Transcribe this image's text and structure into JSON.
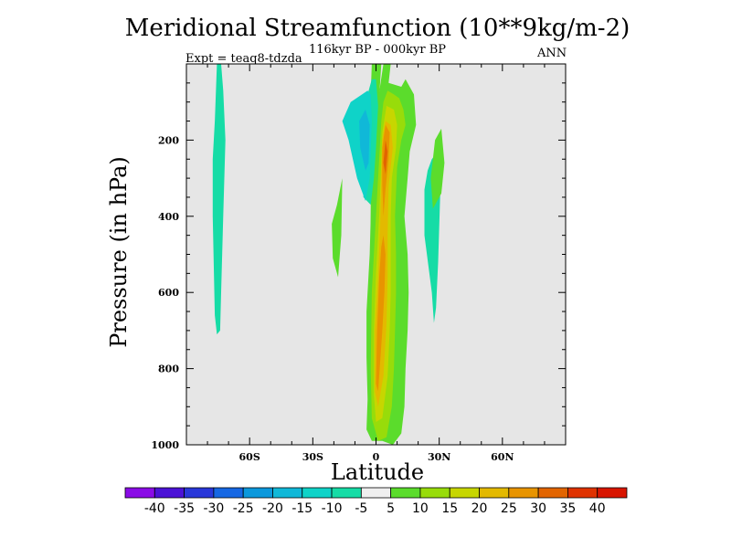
{
  "chart_data": {
    "type": "contour",
    "title": "Meridional Streamfunction (10**9kg/m-2)",
    "subtitle": "116kyr BP - 000kyr BP",
    "experiment_label": "Expt = teaq8-tdzda",
    "season": "ANN",
    "xlabel": "Latitude",
    "ylabel": "Pressure (in hPa)",
    "xlim": [
      -90,
      90
    ],
    "ylim": [
      1000,
      0
    ],
    "x_ticks": [
      {
        "v": -60,
        "label": "60S"
      },
      {
        "v": -30,
        "label": "30S"
      },
      {
        "v": 0,
        "label": "0"
      },
      {
        "v": 30,
        "label": "30N"
      },
      {
        "v": 60,
        "label": "60N"
      }
    ],
    "y_ticks": [
      {
        "v": 200,
        "label": "200"
      },
      {
        "v": 400,
        "label": "400"
      },
      {
        "v": 600,
        "label": "600"
      },
      {
        "v": 800,
        "label": "800"
      },
      {
        "v": 1000,
        "label": "1000"
      }
    ],
    "background_color": "#e6e6e6",
    "levels": [
      -40,
      -35,
      -30,
      -25,
      -20,
      -15,
      -10,
      -5,
      5,
      10,
      15,
      20,
      25,
      30,
      35,
      40
    ],
    "level_labels": [
      "-40",
      "-35",
      "-30",
      "-25",
      "-20",
      "-15",
      "-10",
      "-5",
      "5",
      "10",
      "15",
      "20",
      "25",
      "30",
      "35",
      "40"
    ],
    "colors": [
      "#8a0be6",
      "#4b12d6",
      "#2937d9",
      "#1667e3",
      "#0b98dc",
      "#10b8d8",
      "#0fd3c8",
      "#16dca6",
      "#efefef",
      "#5bdc2c",
      "#98dc0a",
      "#c7d600",
      "#e3b900",
      "#e89400",
      "#e26400",
      "#df3200",
      "#d81500"
    ],
    "regions": [
      {
        "color": "#16dca6",
        "pts": [
          [
            -75.5,
            0
          ],
          [
            -73.5,
            0
          ],
          [
            -72.5,
            70
          ],
          [
            -71.5,
            200
          ],
          [
            -72.5,
            400
          ],
          [
            -73.5,
            600
          ],
          [
            -74,
            700
          ],
          [
            -75.5,
            710
          ],
          [
            -76.5,
            660
          ],
          [
            -77.5,
            400
          ],
          [
            -77.5,
            250
          ],
          [
            -76.5,
            150
          ]
        ]
      },
      {
        "color": "#16dca6",
        "pts": [
          [
            29.5,
            230
          ],
          [
            30.5,
            340
          ],
          [
            29.5,
            520
          ],
          [
            28.5,
            640
          ],
          [
            27.5,
            680
          ],
          [
            26.5,
            600
          ],
          [
            23,
            450
          ],
          [
            23,
            330
          ],
          [
            24.5,
            280
          ],
          [
            26.5,
            250
          ]
        ]
      },
      {
        "color": "#5bdc2c",
        "pts": [
          [
            -18.5,
            370
          ],
          [
            -16,
            300
          ],
          [
            -16.5,
            450
          ],
          [
            -18,
            560
          ],
          [
            -20.5,
            510
          ],
          [
            -21,
            420
          ]
        ]
      },
      {
        "color": "#5bdc2c",
        "pts": [
          [
            31,
            170
          ],
          [
            28,
            200
          ],
          [
            26,
            300
          ],
          [
            27,
            380
          ],
          [
            31,
            340
          ],
          [
            32.5,
            260
          ]
        ]
      },
      {
        "color": "#5bdc2c",
        "pts": [
          [
            -2,
            0
          ],
          [
            2.5,
            0
          ],
          [
            1,
            130
          ],
          [
            1.5,
            300
          ],
          [
            1.5,
            500
          ],
          [
            1,
            650
          ],
          [
            -2,
            700
          ],
          [
            -2.5,
            500
          ],
          [
            -2.5,
            350
          ],
          [
            -2,
            200
          ],
          [
            -2.5,
            80
          ]
        ]
      },
      {
        "color": "#16dca6",
        "pts": [
          [
            -2.5,
            900
          ],
          [
            -1.5,
            880
          ],
          [
            -1.5,
            970
          ],
          [
            -3,
            970
          ]
        ]
      },
      {
        "color": "#5bdc2c",
        "pts": [
          [
            3.5,
            0
          ],
          [
            7,
            0
          ],
          [
            6,
            50
          ],
          [
            12,
            60
          ],
          [
            14,
            40
          ],
          [
            18,
            80
          ],
          [
            19,
            160
          ],
          [
            16,
            230
          ],
          [
            15,
            300
          ],
          [
            13.5,
            400
          ],
          [
            15,
            500
          ],
          [
            15.5,
            600
          ],
          [
            15,
            700
          ],
          [
            14,
            800
          ],
          [
            13.5,
            900
          ],
          [
            12,
            970
          ],
          [
            8,
            1000
          ],
          [
            3,
            990
          ],
          [
            -2,
            990
          ],
          [
            -4.5,
            960
          ],
          [
            -4,
            880
          ],
          [
            -4.5,
            770
          ],
          [
            -4.5,
            650
          ],
          [
            -3,
            500
          ],
          [
            -2,
            300
          ],
          [
            0,
            130
          ]
        ]
      },
      {
        "color": "#16dca6",
        "pts": [
          [
            -2,
            40
          ],
          [
            -5,
            100
          ],
          [
            -6,
            200
          ],
          [
            -6,
            350
          ],
          [
            -2.5,
            370
          ],
          [
            -1,
            300
          ],
          [
            0,
            220
          ],
          [
            1,
            110
          ],
          [
            0,
            40
          ]
        ]
      },
      {
        "color": "#0fd3c8",
        "pts": [
          [
            -4,
            70
          ],
          [
            -12,
            100
          ],
          [
            -16,
            150
          ],
          [
            -13,
            200
          ],
          [
            -9,
            300
          ],
          [
            -5,
            360
          ],
          [
            -3,
            300
          ],
          [
            -2,
            150
          ],
          [
            -2.5,
            80
          ]
        ]
      },
      {
        "color": "#10b8d8",
        "pts": [
          [
            -5,
            120
          ],
          [
            -8,
            150
          ],
          [
            -7.5,
            220
          ],
          [
            -5,
            280
          ],
          [
            -3.5,
            260
          ],
          [
            -3,
            160
          ]
        ]
      },
      {
        "color": "#98dc0a",
        "pts": [
          [
            5.5,
            70
          ],
          [
            8.5,
            80
          ],
          [
            11,
            90
          ],
          [
            13,
            120
          ],
          [
            14,
            160
          ],
          [
            12,
            200
          ],
          [
            10,
            270
          ],
          [
            9,
            400
          ],
          [
            9.5,
            500
          ],
          [
            9.5,
            600
          ],
          [
            9,
            700
          ],
          [
            8.5,
            800
          ],
          [
            7.5,
            900
          ],
          [
            5,
            980
          ],
          [
            1,
            990
          ],
          [
            -2,
            930
          ],
          [
            -2.5,
            800
          ],
          [
            -2,
            600
          ],
          [
            -0.5,
            450
          ],
          [
            1,
            300
          ],
          [
            2.5,
            150
          ],
          [
            3.5,
            100
          ]
        ]
      },
      {
        "color": "#c7d600",
        "pts": [
          [
            5,
            110
          ],
          [
            8.5,
            120
          ],
          [
            10,
            160
          ],
          [
            9.5,
            220
          ],
          [
            7.5,
            300
          ],
          [
            7,
            400
          ],
          [
            7,
            500
          ],
          [
            7,
            600
          ],
          [
            6.5,
            700
          ],
          [
            5.5,
            820
          ],
          [
            3,
            930
          ],
          [
            0,
            940
          ],
          [
            -1,
            870
          ],
          [
            -1,
            700
          ],
          [
            0,
            550
          ],
          [
            1.5,
            400
          ],
          [
            2.5,
            250
          ],
          [
            3,
            180
          ]
        ]
      },
      {
        "color": "#e3b900",
        "pts": [
          [
            4.5,
            150
          ],
          [
            7,
            160
          ],
          [
            8,
            220
          ],
          [
            6,
            320
          ],
          [
            5.5,
            450
          ],
          [
            5.5,
            560
          ],
          [
            5,
            680
          ],
          [
            3.5,
            820
          ],
          [
            1,
            900
          ],
          [
            -0.5,
            860
          ],
          [
            -0.5,
            700
          ],
          [
            1,
            560
          ],
          [
            2,
            420
          ],
          [
            2.5,
            300
          ],
          [
            3,
            200
          ]
        ]
      },
      {
        "color": "#e89400",
        "pts": [
          [
            4.5,
            160
          ],
          [
            6.5,
            180
          ],
          [
            6,
            250
          ],
          [
            4.5,
            330
          ],
          [
            3.5,
            400
          ],
          [
            3,
            320
          ],
          [
            3,
            220
          ]
        ]
      },
      {
        "color": "#e89400",
        "pts": [
          [
            3.5,
            450
          ],
          [
            4.5,
            500
          ],
          [
            4,
            600
          ],
          [
            3,
            700
          ],
          [
            2,
            780
          ],
          [
            1,
            860
          ],
          [
            0,
            840
          ],
          [
            0.5,
            700
          ],
          [
            1.5,
            560
          ],
          [
            2.5,
            480
          ]
        ]
      },
      {
        "color": "#e26400",
        "pts": [
          [
            4.5,
            200
          ],
          [
            5.5,
            230
          ],
          [
            4.5,
            290
          ],
          [
            3.5,
            260
          ]
        ]
      }
    ],
    "colorbar": {
      "orientation": "horizontal",
      "label_position": "below"
    }
  }
}
